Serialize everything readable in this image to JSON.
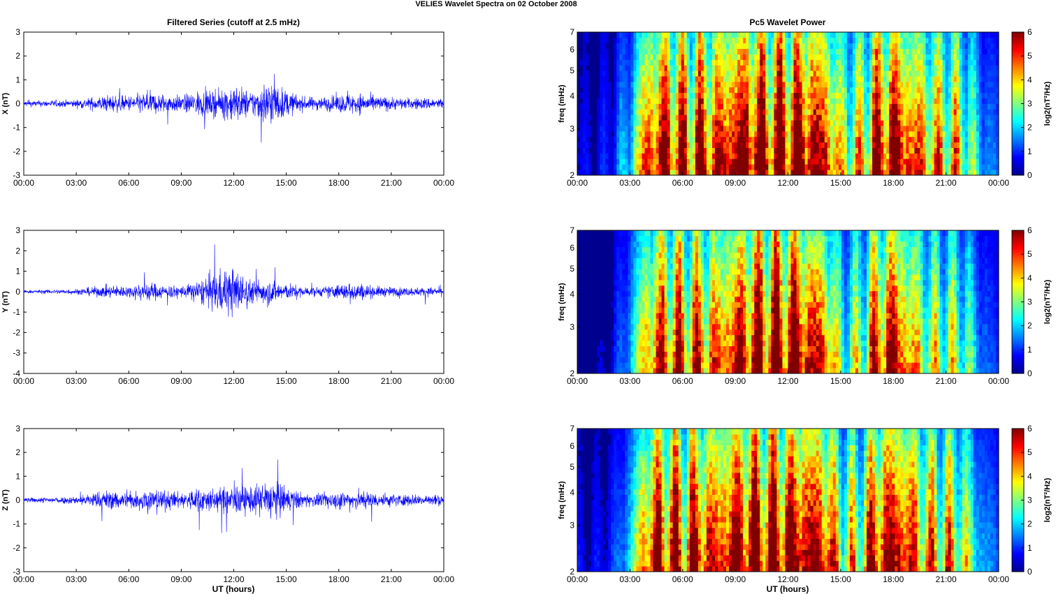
{
  "title": "VELIES Wavelet Spectra on 02 October   2008",
  "left_title": "Filtered Series (cutoff at 2.5 mHz)",
  "right_title": "Pc5 Wavelet Power",
  "xlabel": "UT (hours)",
  "colors": {
    "trace": "#0000ff",
    "axis": "#000000"
  },
  "chart_data": [
    {
      "type": "line",
      "ylabel": "X (nT)",
      "xlim": [
        0,
        24
      ],
      "ylim": [
        -3,
        3
      ],
      "xticks": [
        "00:00",
        "03:00",
        "06:00",
        "09:00",
        "12:00",
        "15:00",
        "18:00",
        "21:00",
        "00:00"
      ],
      "yticks": [
        "3",
        "2",
        "1",
        "0",
        "-1",
        "-2",
        "-3"
      ],
      "series": [
        {
          "x": [
            0,
            3,
            4,
            5,
            6,
            7,
            8,
            9,
            10,
            11,
            12,
            13,
            14,
            15,
            16,
            17,
            18,
            19,
            20,
            21,
            22,
            23,
            24
          ],
          "amplitude": [
            0.25,
            0.35,
            0.6,
            0.8,
            0.7,
            1.0,
            0.9,
            0.7,
            1.2,
            1.0,
            1.8,
            1.1,
            2.2,
            1.2,
            0.6,
            0.6,
            0.8,
            1.0,
            0.7,
            0.6,
            0.5,
            0.55,
            0.5
          ]
        }
      ]
    },
    {
      "type": "line",
      "ylabel": "Y (nT)",
      "xlim": [
        0,
        24
      ],
      "ylim": [
        -4,
        3
      ],
      "xticks": [
        "00:00",
        "03:00",
        "06:00",
        "09:00",
        "12:00",
        "15:00",
        "18:00",
        "21:00",
        "00:00"
      ],
      "yticks": [
        "3",
        "2",
        "1",
        "0",
        "-1",
        "-2",
        "-3",
        "-4"
      ],
      "series": [
        {
          "x": [
            0,
            3,
            4,
            5,
            6,
            7,
            8,
            9,
            10,
            11,
            12,
            13,
            14,
            15,
            16,
            17,
            18,
            19,
            20,
            21,
            22,
            23,
            24
          ],
          "amplitude": [
            0.15,
            0.3,
            0.5,
            0.7,
            0.6,
            1.1,
            0.7,
            0.6,
            1.2,
            2.2,
            2.6,
            1.2,
            1.4,
            0.9,
            0.5,
            0.5,
            0.8,
            1.0,
            0.6,
            0.5,
            0.45,
            0.45,
            0.45
          ]
        }
      ]
    },
    {
      "type": "line",
      "ylabel": "Z (nT)",
      "xlim": [
        0,
        24
      ],
      "ylim": [
        -3,
        3
      ],
      "xticks": [
        "00:00",
        "03:00",
        "06:00",
        "09:00",
        "12:00",
        "15:00",
        "18:00",
        "21:00",
        "00:00"
      ],
      "yticks": [
        "3",
        "2",
        "1",
        "0",
        "-1",
        "-2",
        "-3"
      ],
      "series": [
        {
          "x": [
            0,
            3,
            4,
            5,
            6,
            7,
            8,
            9,
            10,
            11,
            12,
            13,
            14,
            15,
            16,
            17,
            18,
            19,
            20,
            21,
            22,
            23,
            24
          ],
          "amplitude": [
            0.2,
            0.35,
            0.7,
            0.9,
            0.7,
            1.1,
            0.9,
            0.7,
            1.2,
            1.0,
            1.4,
            1.1,
            2.0,
            1.2,
            0.6,
            0.6,
            0.8,
            0.9,
            0.7,
            0.6,
            0.5,
            0.5,
            0.5
          ]
        }
      ]
    },
    {
      "type": "heatmap",
      "ylabel": "freq (mHz)",
      "yscale": "log",
      "xlim": [
        0,
        24
      ],
      "ylim": [
        2,
        7
      ],
      "xticks": [
        "00:00",
        "03:00",
        "06:00",
        "09:00",
        "12:00",
        "15:00",
        "18:00",
        "21:00",
        "00:00"
      ],
      "yticks": [
        "7",
        "6",
        "5",
        "4",
        "3",
        "2"
      ],
      "colorbar": {
        "label": "log2(nT²/Hz)",
        "range": [
          0,
          6
        ],
        "ticks": [
          "6",
          "5",
          "4",
          "3",
          "2",
          "1",
          "0"
        ],
        "colormap": "jet"
      },
      "activity": [
        0.1,
        0.1,
        0.15,
        0.35,
        0.85,
        0.95,
        0.85,
        0.9,
        0.85,
        1.0,
        1.0,
        1.0,
        1.0,
        1.0,
        0.95,
        0.6,
        0.6,
        0.9,
        1.0,
        0.85,
        0.7,
        0.7,
        0.6,
        0.3,
        0.2
      ]
    },
    {
      "type": "heatmap",
      "ylabel": "freq (mHz)",
      "yscale": "log",
      "xlim": [
        0,
        24
      ],
      "ylim": [
        2,
        7
      ],
      "xticks": [
        "00:00",
        "03:00",
        "06:00",
        "09:00",
        "12:00",
        "15:00",
        "18:00",
        "21:00",
        "00:00"
      ],
      "yticks": [
        "7",
        "6",
        "5",
        "4",
        "3",
        "2"
      ],
      "colorbar": {
        "label": "log2(nT²/Hz)",
        "range": [
          0,
          6
        ],
        "ticks": [
          "6",
          "5",
          "4",
          "3",
          "2",
          "1",
          "0"
        ],
        "colormap": "jet"
      },
      "activity": [
        0.05,
        0.05,
        0.1,
        0.3,
        0.75,
        0.85,
        0.8,
        0.8,
        0.75,
        0.9,
        0.95,
        1.0,
        1.0,
        0.95,
        0.85,
        0.45,
        0.5,
        0.8,
        0.95,
        0.7,
        0.55,
        0.55,
        0.5,
        0.25,
        0.15
      ]
    },
    {
      "type": "heatmap",
      "ylabel": "freq (mHz)",
      "yscale": "log",
      "xlim": [
        0,
        24
      ],
      "ylim": [
        2,
        7
      ],
      "xticks": [
        "00:00",
        "03:00",
        "06:00",
        "09:00",
        "12:00",
        "15:00",
        "18:00",
        "21:00",
        "00:00"
      ],
      "yticks": [
        "7",
        "6",
        "5",
        "4",
        "3",
        "2"
      ],
      "colorbar": {
        "label": "log2(nT²/Hz)",
        "range": [
          0,
          6
        ],
        "ticks": [
          "6",
          "5",
          "4",
          "3",
          "2",
          "1",
          "0"
        ],
        "colormap": "jet"
      },
      "activity": [
        0.1,
        0.1,
        0.15,
        0.35,
        0.85,
        0.95,
        0.85,
        0.9,
        0.85,
        1.0,
        1.0,
        1.0,
        1.0,
        1.0,
        0.95,
        0.6,
        0.6,
        0.9,
        1.0,
        0.85,
        0.7,
        0.7,
        0.6,
        0.3,
        0.2
      ]
    }
  ]
}
